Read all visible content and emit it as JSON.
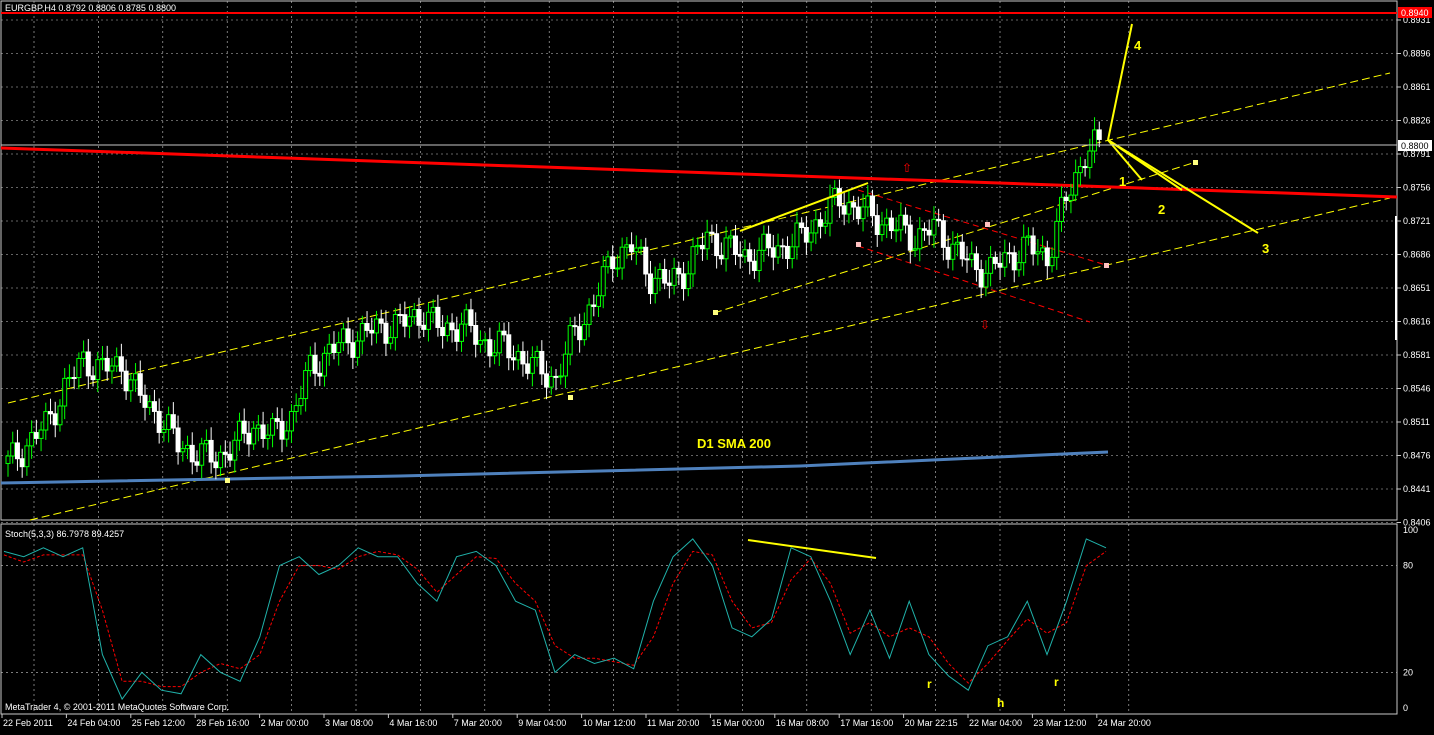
{
  "header": {
    "title": "EURGBP,H4  0.8792 0.8806 0.8785 0.8800"
  },
  "indicator": {
    "title": "Stoch(5,3,3) 86.7978 89.4257"
  },
  "footer": {
    "copyright": "MetaTrader 4, © 2001-2011 MetaQuotes Software Corp."
  },
  "annotations": {
    "sma_label": "D1 SMA 200",
    "wave_1": "1",
    "wave_2": "2",
    "wave_3": "3",
    "wave_4": "4",
    "osc_r1": "r",
    "osc_h": "h",
    "osc_r2": "r"
  },
  "colors": {
    "background": "#000000",
    "grid": "#c8c8c8",
    "bull_candle": "#00ff00",
    "bear_candle": "#ffffff",
    "bull_body": "#000000",
    "bear_body": "#ffffff",
    "channel": "#ffff00",
    "red_line": "#ff0000",
    "sma": "#4f81bd",
    "stoch_main": "#20b2aa",
    "stoch_signal": "#ff0000",
    "annotation": "#ffff00"
  },
  "chart_data": {
    "type": "candlestick",
    "symbol": "EURGBP",
    "timeframe": "H4",
    "ohlc_current": {
      "open": 0.8792,
      "high": 0.8806,
      "low": 0.8785,
      "close": 0.88
    },
    "current_price": "0.8800",
    "red_level": "0.8940",
    "y_axis_ticks": [
      "0.8931",
      "0.8896",
      "0.8861",
      "0.8826",
      "0.8791",
      "0.8756",
      "0.8721",
      "0.8686",
      "0.8651",
      "0.8616",
      "0.8581",
      "0.8546",
      "0.8511",
      "0.8476",
      "0.8441",
      "0.8406"
    ],
    "x_axis_ticks": [
      "22 Feb 2011",
      "24 Feb 04:00",
      "25 Feb 12:00",
      "28 Feb 16:00",
      "2 Mar 00:00",
      "3 Mar 08:00",
      "4 Mar 16:00",
      "7 Mar 20:00",
      "9 Mar 04:00",
      "10 Mar 12:00",
      "11 Mar 20:00",
      "15 Mar 00:00",
      "16 Mar 08:00",
      "17 Mar 16:00",
      "20 Mar 22:15",
      "22 Mar 04:00",
      "23 Mar 12:00",
      "24 Mar 20:00"
    ],
    "stoch_levels": [
      "100",
      "80",
      "20",
      "0"
    ],
    "ylim": [
      0.84,
      0.8945
    ],
    "close_path": [
      0.846,
      0.848,
      0.85,
      0.854,
      0.857,
      0.856,
      0.8565,
      0.853,
      0.851,
      0.848,
      0.847,
      0.8465,
      0.848,
      0.85,
      0.849,
      0.851,
      0.856,
      0.858,
      0.859,
      0.86,
      0.8605,
      0.861,
      0.862,
      0.86,
      0.861,
      0.859,
      0.8585,
      0.8575,
      0.856,
      0.855,
      0.86,
      0.863,
      0.868,
      0.869,
      0.866,
      0.865,
      0.867,
      0.87,
      0.869,
      0.868,
      0.8685,
      0.869,
      0.87,
      0.872,
      0.874,
      0.873,
      0.872,
      0.871,
      0.87,
      0.871,
      0.869,
      0.867,
      0.8665,
      0.868,
      0.869,
      0.868,
      0.874,
      0.879,
      0.88
    ],
    "stoch_main": [
      88,
      85,
      90,
      85,
      90,
      30,
      5,
      20,
      10,
      8,
      30,
      20,
      15,
      40,
      80,
      85,
      75,
      80,
      90,
      85,
      85,
      70,
      60,
      85,
      88,
      80,
      60,
      55,
      20,
      30,
      25,
      28,
      22,
      60,
      85,
      95,
      80,
      45,
      40,
      50,
      90,
      85,
      60,
      30,
      55,
      28,
      60,
      30,
      18,
      10,
      35,
      40,
      60,
      30,
      60,
      95,
      90
    ],
    "stoch_signal": [
      86,
      82,
      86,
      86,
      86,
      55,
      15,
      15,
      12,
      12,
      20,
      25,
      22,
      30,
      60,
      80,
      80,
      78,
      85,
      88,
      86,
      78,
      65,
      75,
      85,
      84,
      70,
      60,
      35,
      28,
      28,
      26,
      24,
      40,
      70,
      88,
      86,
      60,
      45,
      48,
      72,
      84,
      70,
      42,
      48,
      40,
      45,
      40,
      25,
      14,
      25,
      38,
      50,
      42,
      48,
      80,
      88
    ]
  }
}
